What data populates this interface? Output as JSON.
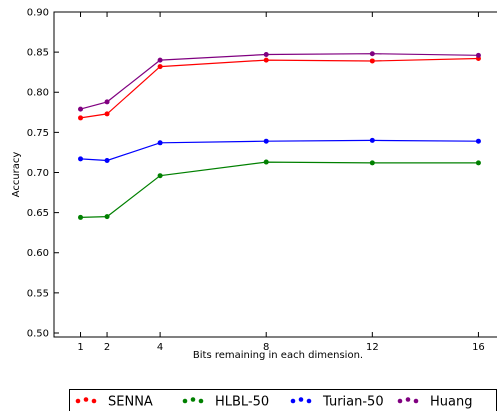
{
  "chart_data": {
    "type": "line",
    "title": "",
    "xlabel": "Bits remaining in each dimension.",
    "ylabel": "Accuracy",
    "x": [
      1,
      2,
      4,
      8,
      12,
      16
    ],
    "x_ticks": [
      "1",
      "2",
      "4",
      "8",
      "12",
      "16"
    ],
    "y_ticks": [
      "0.50",
      "0.55",
      "0.60",
      "0.65",
      "0.70",
      "0.75",
      "0.80",
      "0.85",
      "0.90"
    ],
    "xlim": [
      0,
      16.7
    ],
    "ylim": [
      0.495,
      0.9
    ],
    "grid": false,
    "legend_position": "bottom",
    "series": [
      {
        "name": "SENNA",
        "color": "#ff0000",
        "values": [
          0.768,
          0.773,
          0.832,
          0.84,
          0.839,
          0.842
        ]
      },
      {
        "name": "HLBL-50",
        "color": "#008000",
        "values": [
          0.644,
          0.645,
          0.696,
          0.713,
          0.712,
          0.712
        ]
      },
      {
        "name": "Turian-50",
        "color": "#0000ff",
        "values": [
          0.717,
          0.715,
          0.737,
          0.739,
          0.74,
          0.739
        ]
      },
      {
        "name": "Huang",
        "color": "#800080",
        "values": [
          0.779,
          0.788,
          0.84,
          0.847,
          0.848,
          0.846
        ]
      }
    ]
  }
}
